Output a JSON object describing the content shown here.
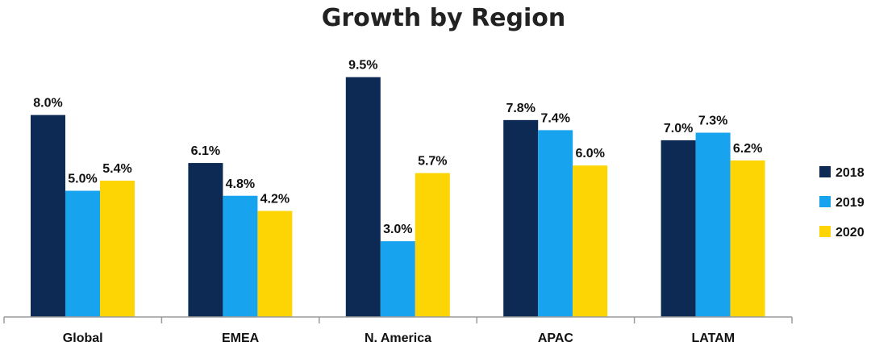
{
  "chart_data": {
    "type": "bar",
    "title": "Growth by Region",
    "xlabel": "",
    "ylabel": "",
    "categories": [
      "Global",
      "EMEA",
      "N. America",
      "APAC",
      "LATAM"
    ],
    "series": [
      {
        "name": "2018",
        "values": [
          8.0,
          6.1,
          9.5,
          7.8,
          7.0
        ],
        "labels": [
          "8.0%",
          "6.1%",
          "9.5%",
          "7.8%",
          "7.0%"
        ]
      },
      {
        "name": "2019",
        "values": [
          5.0,
          4.8,
          3.0,
          7.4,
          7.3
        ],
        "labels": [
          "5.0%",
          "4.8%",
          "3.0%",
          "7.4%",
          "7.3%"
        ]
      },
      {
        "name": "2020",
        "values": [
          5.4,
          4.2,
          5.7,
          6.0,
          6.2
        ],
        "labels": [
          "5.4%",
          "4.2%",
          "5.7%",
          "6.0%",
          "6.2%"
        ]
      }
    ],
    "ylim": [
      0,
      10
    ],
    "grid": false,
    "legend": "right",
    "colors": [
      "#0d2a54",
      "#18a3ef",
      "#fdd504"
    ],
    "axis_color": "#9a9a9a"
  }
}
